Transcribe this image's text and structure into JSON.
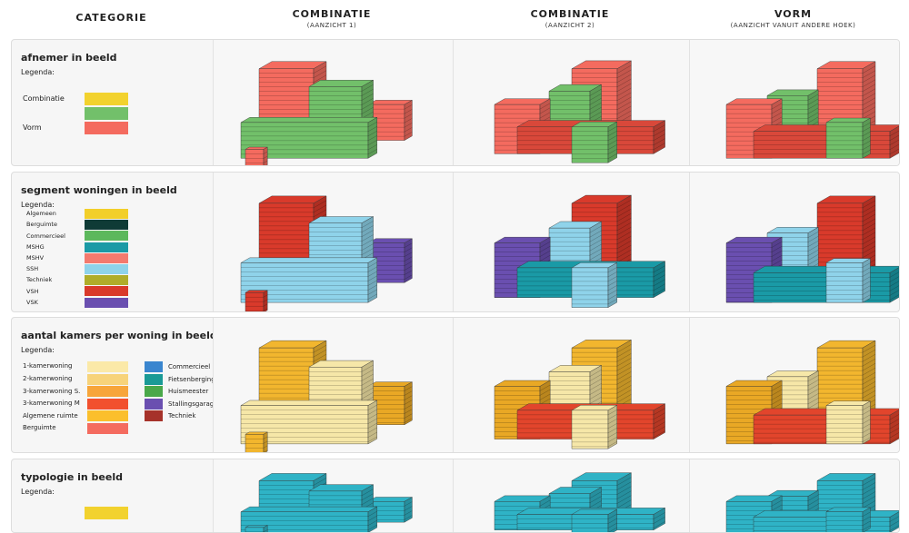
{
  "header": {
    "columns": [
      {
        "title": "CATEGORIE"
      },
      {
        "title": "COMBINATIE",
        "subtitle": "(AANZICHT 1)"
      },
      {
        "title": "COMBINATIE",
        "subtitle": "(AANZICHT 2)"
      },
      {
        "title": "VORM",
        "subtitle": "(AANZICHT VANUIT ANDERE HOEK)"
      }
    ]
  },
  "rows": [
    {
      "title": "afnemer in beeld",
      "legend_title": "Legenda:",
      "legend": [
        {
          "label": "Combinatie",
          "color": "#f2d22e"
        },
        {
          "color": "#72c06a"
        },
        {
          "label": "Vorm",
          "color": "#f46b5f"
        }
      ]
    },
    {
      "title": "segment woningen in beeld",
      "legend_title": "Legenda:",
      "legend": [
        {
          "label": "Algemeen",
          "color": "#f2cf2a"
        },
        {
          "label": "Berguimte",
          "color": "#0f3b36"
        },
        {
          "label": "Commercieel",
          "color": "#5cb85c"
        },
        {
          "label": "MSHG",
          "color": "#1a9aa6"
        },
        {
          "label": "MSHV",
          "color": "#f47a6e"
        },
        {
          "label": "SSH",
          "color": "#8fd3ea"
        },
        {
          "label": "Techniek",
          "color": "#b0ad2a"
        },
        {
          "label": "VSH",
          "color": "#d93a2b"
        },
        {
          "label": "VSK",
          "color": "#6a4fb0"
        }
      ]
    },
    {
      "title": "aantal kamers per woning in beeld",
      "legend_title": "Legenda:",
      "legend": [
        {
          "label": "1-kamerwoning",
          "color": "#fbe9a8"
        },
        {
          "label": "2-kamerwoning",
          "color": "#f7d37a"
        },
        {
          "label": "3-kamerwoning S.",
          "color": "#f7a53a"
        },
        {
          "label": "3-kamerwoning M",
          "color": "#f2502e"
        },
        {
          "label": "Algemene ruimte",
          "color": "#fbbf2c"
        },
        {
          "label": "Berguimte",
          "color": "#f46b5f"
        }
      ],
      "legend_right": [
        {
          "label": "Commercieel",
          "color": "#3a86cf"
        },
        {
          "label": "Fietsenberging",
          "color": "#1a9a96"
        },
        {
          "label": "Huismeester",
          "color": "#4aa84a"
        },
        {
          "label": "Stallingsgarage",
          "color": "#6a4fb0"
        },
        {
          "label": "Techniek",
          "color": "#a6322a"
        }
      ]
    },
    {
      "title": "typologie in beeld",
      "legend_title": "Legenda:",
      "legend": [
        {
          "color": "#f2d22e"
        }
      ]
    }
  ]
}
